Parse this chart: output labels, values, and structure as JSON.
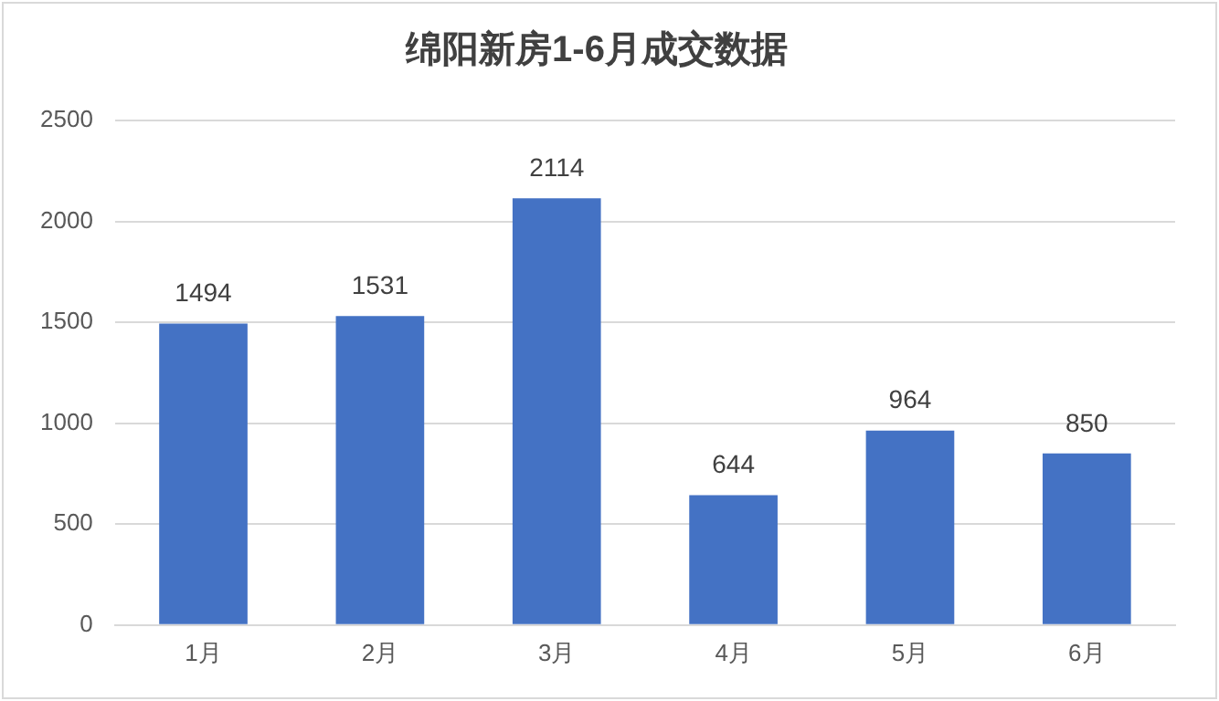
{
  "chart_data": {
    "type": "bar",
    "title": "绵阳新房1-6月成交数据",
    "categories": [
      "1月",
      "2月",
      "3月",
      "4月",
      "5月",
      "6月"
    ],
    "values": [
      1494,
      1531,
      2114,
      644,
      964,
      850
    ],
    "color": "#4472c4",
    "ylim": [
      0,
      2500
    ],
    "yticks": [
      0,
      500,
      1000,
      1500,
      2000,
      2500
    ],
    "grid": "y",
    "data_labels": true
  }
}
